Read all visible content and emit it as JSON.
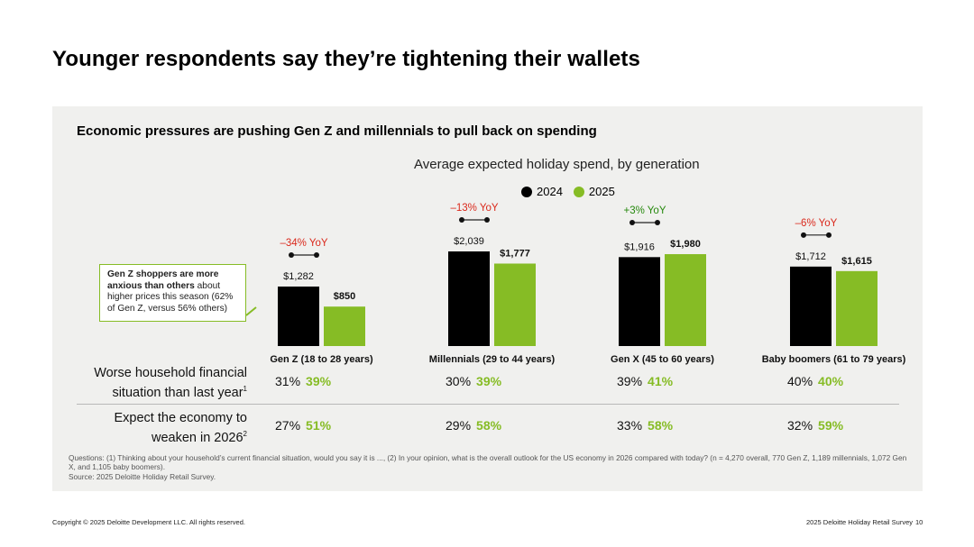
{
  "title": "Younger respondents say they’re tightening their wallets",
  "subtitle": "Economic pressures are pushing Gen Z and millennials to pull back on spending",
  "chart_data": {
    "type": "bar",
    "title": "Average expected holiday spend, by generation",
    "categories": [
      "Gen Z (18 to 28 years)",
      "Millennials (29 to 44 years)",
      "Gen X (45 to 60 years)",
      "Baby boomers (61 to 79 years)"
    ],
    "series": [
      {
        "name": "2024",
        "values": [
          1282,
          2039,
          1916,
          1712
        ],
        "labels": [
          "$1,282",
          "$2,039",
          "$1,916",
          "$1,712"
        ],
        "color": "#000000"
      },
      {
        "name": "2025",
        "values": [
          850,
          1777,
          1980,
          1615
        ],
        "labels": [
          "$850",
          "$1,777",
          "$1,980",
          "$1,615"
        ],
        "color": "#86bc25"
      }
    ],
    "yoy": [
      "–34% YoY",
      "–13% YoY",
      "+3% YoY",
      "–6% YoY"
    ],
    "yoy_colors": [
      "#da291c",
      "#da291c",
      "#26890d",
      "#da291c"
    ],
    "legend_position": "top-center",
    "grid": false
  },
  "callout": {
    "bold": "Gen Z shoppers are more anxious than others",
    "text": " about higher prices this season (62% of Gen Z, versus 56% others)"
  },
  "rows": [
    {
      "label_line1": "Worse household financial",
      "label_line2": "situation than last year",
      "sup": "1",
      "values": [
        [
          "31%",
          "39%"
        ],
        [
          "30%",
          "39%"
        ],
        [
          "39%",
          "41%"
        ],
        [
          "40%",
          "40%"
        ]
      ]
    },
    {
      "label_line1": "Expect the economy to",
      "label_line2": "weaken in 2026",
      "sup": "2",
      "values": [
        [
          "27%",
          "51%"
        ],
        [
          "29%",
          "58%"
        ],
        [
          "33%",
          "58%"
        ],
        [
          "32%",
          "59%"
        ]
      ]
    }
  ],
  "footnote": "Questions: (1) Thinking about your household’s current financial situation, would you say it is ..., (2) In your opinion, what is the overall outlook for the US economy in 2026 compared with today? (n = 4,270 overall, 770 Gen Z, 1,189 millennials, 1,072 Gen X, and 1,105 baby boomers).",
  "source": "Source: 2025 Deloitte Holiday Retail Survey.",
  "footer_left": "Copyright © 2025 Deloitte Development LLC. All rights reserved.",
  "footer_right": "2025 Deloitte Holiday Retail Survey",
  "page_number": "10"
}
